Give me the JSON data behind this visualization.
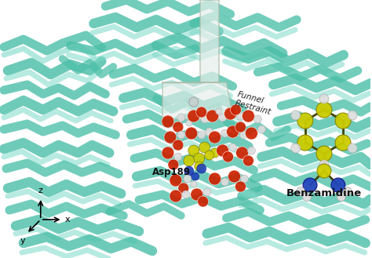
{
  "background_color": "#ffffff",
  "figure_width": 4.74,
  "figure_height": 3.29,
  "dpi": 100,
  "labels": {
    "funnel_restraint": "Funnel\nRestraint",
    "asp189": "Asp189",
    "benzamidine": "Benzamidine"
  },
  "teal_light": "#7DD9C8",
  "teal_mid": "#4BBFA8",
  "teal_dark": "#2E9E88",
  "atom_red": "#CC2200",
  "atom_white": "#EEEEEE",
  "atom_yellow": "#CCCC00",
  "atom_blue": "#2244BB",
  "benzamidine_yellow": "#C8C800",
  "funnel_color": "#E8F0EC",
  "funnel_edge": "#AABBAA"
}
